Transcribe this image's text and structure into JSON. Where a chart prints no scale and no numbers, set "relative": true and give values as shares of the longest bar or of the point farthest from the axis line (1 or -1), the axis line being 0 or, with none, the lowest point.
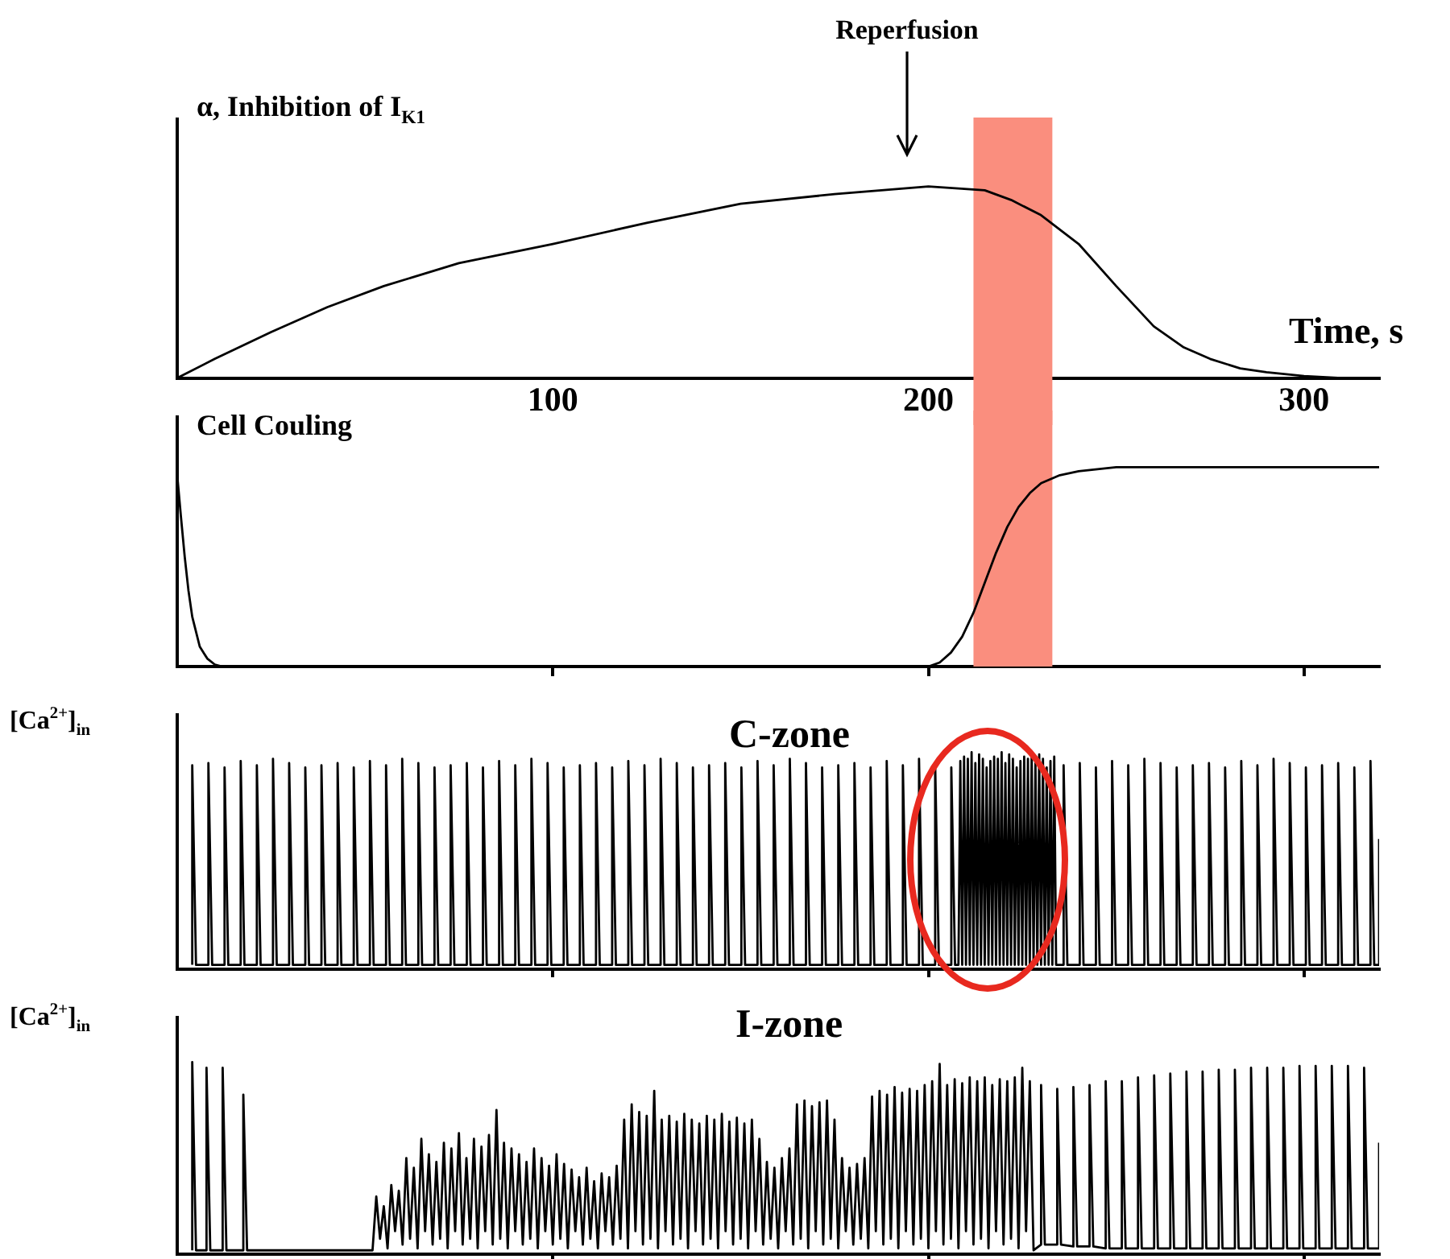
{
  "chart_data": [
    {
      "type": "line",
      "ylabel": "α, Inhibition of I$_{K1}$",
      "xlabel": "Time, s",
      "relative": true,
      "color": "#000000",
      "marker": "none",
      "xlim": [
        0,
        320
      ],
      "xticks": [
        100,
        200,
        300
      ],
      "tick_labels": "x",
      "x": [
        0,
        10,
        25,
        40,
        55,
        75,
        100,
        125,
        150,
        175,
        200,
        208,
        215,
        222,
        230,
        240,
        250,
        260,
        268,
        275,
        283,
        290,
        300,
        310,
        320
      ],
      "values": [
        0,
        0.1,
        0.24,
        0.37,
        0.48,
        0.6,
        0.7,
        0.81,
        0.91,
        0.96,
        1,
        0.99,
        0.98,
        0.93,
        0.85,
        0.7,
        0.48,
        0.27,
        0.16,
        0.1,
        0.05,
        0.03,
        0.01,
        0,
        0
      ],
      "bands": [
        {
          "axis": "x",
          "from": 212,
          "to": 233,
          "color": "#fa8e7e"
        }
      ],
      "annotations": [
        "Reperfusion"
      ]
    },
    {
      "type": "line",
      "ylabel": "Cell Couling",
      "relative": true,
      "color": "#000000",
      "marker": "none",
      "xlim": [
        0,
        320
      ],
      "xticks": [
        100,
        200,
        300
      ],
      "tick_labels": false,
      "x": [
        0,
        1,
        2,
        3,
        4,
        6,
        8,
        10,
        12,
        200,
        203,
        206,
        209,
        212,
        215,
        218,
        221,
        224,
        227,
        230,
        235,
        240,
        245,
        250,
        320
      ],
      "values": [
        0.96,
        0.75,
        0.55,
        0.38,
        0.25,
        0.1,
        0.04,
        0.01,
        0,
        0,
        0.02,
        0.07,
        0.15,
        0.27,
        0.42,
        0.57,
        0.7,
        0.8,
        0.87,
        0.92,
        0.96,
        0.98,
        0.99,
        1,
        1
      ],
      "bands": [
        {
          "axis": "x",
          "from": 212,
          "to": 233,
          "color": "#fa8e7e"
        }
      ]
    },
    {
      "type": "line",
      "title": "C-zone",
      "ylabel": "[Ca$^{2+}$]$_{in}$",
      "relative": true,
      "color": "#000000",
      "marker": "none",
      "xlim": [
        0,
        320
      ],
      "xticks": [
        100,
        200,
        300
      ],
      "tick_labels": false,
      "x": [
        4,
        4,
        5,
        8.3,
        8.3,
        9.3,
        12.6,
        12.6,
        13.6,
        16.9,
        16.9,
        17.9,
        21.2,
        21.2,
        22.2,
        25.5,
        25.5,
        26.5,
        29.8,
        29.8,
        30.8,
        34.1,
        34.1,
        35.1,
        38.4,
        38.4,
        39.4,
        42.7,
        42.7,
        43.7,
        47,
        47,
        48,
        51.3,
        51.3,
        52.3,
        55.6,
        55.6,
        56.6,
        59.9,
        59.9,
        60.9,
        64.2,
        64.2,
        65.2,
        68.5,
        68.5,
        69.5,
        72.8,
        72.8,
        73.8,
        77.1,
        77.1,
        78.1,
        81.4,
        81.4,
        82.4,
        85.7,
        85.7,
        86.7,
        90,
        90,
        91,
        94.3,
        94.3,
        95.3,
        98.6,
        98.6,
        99.6,
        102.9,
        102.9,
        103.9,
        107.2,
        107.2,
        108.2,
        111.5,
        111.5,
        112.5,
        115.8,
        115.8,
        116.8,
        120.1,
        120.1,
        121.1,
        124.4,
        124.4,
        125.4,
        128.7,
        128.7,
        129.7,
        133,
        133,
        134,
        137.3,
        137.3,
        138.3,
        141.6,
        141.6,
        142.6,
        145.9,
        145.9,
        146.9,
        150.2,
        150.2,
        151.2,
        154.5,
        154.5,
        155.5,
        158.8,
        158.8,
        159.8,
        163.1,
        163.1,
        164.1,
        167.4,
        167.4,
        168.4,
        171.7,
        171.7,
        172.7,
        176,
        176,
        177,
        180.3,
        180.3,
        181.3,
        184.6,
        184.6,
        185.6,
        188.9,
        188.9,
        189.9,
        193.2,
        193.2,
        194.2,
        197.5,
        197.5,
        198.5,
        201.8,
        201.8,
        202.8,
        206.1,
        206.1,
        207.1,
        208,
        208.5,
        209,
        209.5,
        210,
        210.5,
        211,
        211.5,
        212,
        212.5,
        213,
        213.5,
        214,
        214.5,
        215,
        215.5,
        216,
        216.5,
        217,
        217.5,
        218,
        218.5,
        219,
        219.5,
        220,
        220.5,
        221,
        221.5,
        222,
        222.5,
        223,
        223.5,
        224,
        224.5,
        225,
        225.5,
        226,
        226.5,
        227,
        227.5,
        228,
        228.5,
        229,
        229.5,
        230,
        230.5,
        231,
        231.5,
        232,
        232.5,
        233,
        233.5,
        234,
        236,
        236,
        237,
        240.3,
        240.3,
        241.3,
        244.6,
        244.6,
        245.6,
        248.9,
        248.9,
        249.9,
        253.2,
        253.2,
        254.2,
        257.5,
        257.5,
        258.5,
        261.8,
        261.8,
        262.8,
        266.1,
        266.1,
        267.1,
        270.4,
        270.4,
        271.4,
        274.7,
        274.7,
        275.7,
        279,
        279,
        280,
        283.3,
        283.3,
        284.3,
        287.6,
        287.6,
        288.6,
        291.9,
        291.9,
        292.9,
        296.2,
        296.2,
        297.2,
        300.5,
        300.5,
        301.5,
        304.8,
        304.8,
        305.8,
        309.1,
        309.1,
        310.1,
        313.4,
        313.4,
        314.4,
        317.7,
        317.7,
        318.7,
        320,
        320
      ],
      "values": [
        0.02,
        0.94,
        0.02,
        0.02,
        0.95,
        0.02,
        0.02,
        0.93,
        0.02,
        0.02,
        0.96,
        0.02,
        0.02,
        0.94,
        0.02,
        0.02,
        0.97,
        0.02,
        0.02,
        0.95,
        0.02,
        0.02,
        0.93,
        0.02,
        0.02,
        0.94,
        0.02,
        0.02,
        0.95,
        0.02,
        0.02,
        0.93,
        0.02,
        0.02,
        0.96,
        0.02,
        0.02,
        0.94,
        0.02,
        0.02,
        0.97,
        0.02,
        0.02,
        0.95,
        0.02,
        0.02,
        0.93,
        0.02,
        0.02,
        0.94,
        0.02,
        0.02,
        0.95,
        0.02,
        0.02,
        0.93,
        0.02,
        0.02,
        0.96,
        0.02,
        0.02,
        0.94,
        0.02,
        0.02,
        0.97,
        0.02,
        0.02,
        0.95,
        0.02,
        0.02,
        0.93,
        0.02,
        0.02,
        0.94,
        0.02,
        0.02,
        0.95,
        0.02,
        0.02,
        0.93,
        0.02,
        0.02,
        0.96,
        0.02,
        0.02,
        0.94,
        0.02,
        0.02,
        0.97,
        0.02,
        0.02,
        0.95,
        0.02,
        0.02,
        0.93,
        0.02,
        0.02,
        0.94,
        0.02,
        0.02,
        0.95,
        0.02,
        0.02,
        0.93,
        0.02,
        0.02,
        0.96,
        0.02,
        0.02,
        0.94,
        0.02,
        0.02,
        0.97,
        0.02,
        0.02,
        0.95,
        0.02,
        0.02,
        0.93,
        0.02,
        0.02,
        0.94,
        0.02,
        0.02,
        0.95,
        0.02,
        0.02,
        0.93,
        0.02,
        0.02,
        0.96,
        0.02,
        0.02,
        0.94,
        0.02,
        0.02,
        0.97,
        0.02,
        0.02,
        0.95,
        0.02,
        0.02,
        0.93,
        0.02,
        0.02,
        0.96,
        0.02,
        0.98,
        0.02,
        0.97,
        0.02,
        1,
        0.02,
        0.95,
        0.02,
        0.99,
        0.02,
        0.97,
        0.02,
        0.93,
        0.02,
        0.96,
        0.02,
        0.98,
        0.02,
        0.97,
        0.02,
        1,
        0.02,
        0.95,
        0.02,
        0.99,
        0.02,
        0.97,
        0.02,
        0.93,
        0.02,
        0.96,
        0.02,
        0.98,
        0.02,
        0.97,
        0.02,
        1,
        0.02,
        0.95,
        0.02,
        0.99,
        0.02,
        0.97,
        0.02,
        0.93,
        0.02,
        0.96,
        0.02,
        0.98,
        0.02,
        0.02,
        0.94,
        0.02,
        0.02,
        0.95,
        0.02,
        0.02,
        0.93,
        0.02,
        0.02,
        0.96,
        0.02,
        0.02,
        0.94,
        0.02,
        0.02,
        0.97,
        0.02,
        0.02,
        0.95,
        0.02,
        0.02,
        0.93,
        0.02,
        0.02,
        0.94,
        0.02,
        0.02,
        0.95,
        0.02,
        0.02,
        0.93,
        0.02,
        0.02,
        0.96,
        0.02,
        0.02,
        0.94,
        0.02,
        0.02,
        0.97,
        0.02,
        0.02,
        0.95,
        0.02,
        0.02,
        0.93,
        0.02,
        0.02,
        0.94,
        0.02,
        0.02,
        0.95,
        0.02,
        0.02,
        0.93,
        0.02,
        0.02,
        0.96,
        0.02,
        0.02,
        0.6
      ]
    },
    {
      "type": "line",
      "title": "I-zone",
      "ylabel": "[Ca$^{2+}$]$_{in}$",
      "relative": true,
      "color": "#000000",
      "marker": "none",
      "xlim": [
        0,
        320
      ],
      "xticks": [
        100,
        200,
        300
      ],
      "tick_labels": false,
      "x": [
        4,
        4,
        5,
        7.8,
        7.8,
        8.8,
        12.1,
        12.1,
        13.1,
        17.6,
        17.6,
        18.6,
        52,
        53,
        54,
        55,
        56,
        57,
        58,
        59,
        60,
        61,
        62,
        63,
        64,
        65,
        66,
        67,
        68,
        69,
        70,
        71,
        72,
        73,
        74,
        75,
        76,
        77,
        78,
        79,
        80,
        81,
        82,
        83,
        84,
        85,
        86,
        87,
        88,
        89,
        90,
        91,
        92,
        93,
        94,
        95,
        96,
        97,
        98,
        99,
        100,
        101,
        102,
        103,
        104,
        105,
        106,
        107,
        108,
        109,
        110,
        111,
        112,
        113,
        114,
        115,
        116,
        117,
        118,
        119,
        120,
        121,
        122,
        123,
        124,
        125,
        126,
        127,
        128,
        129,
        130,
        131,
        132,
        133,
        134,
        135,
        136,
        137,
        138,
        139,
        140,
        141,
        142,
        143,
        144,
        145,
        146,
        147,
        148,
        149,
        150,
        151,
        152,
        153,
        154,
        155,
        156,
        157,
        158,
        159,
        160,
        161,
        162,
        163,
        164,
        165,
        166,
        167,
        168,
        169,
        170,
        171,
        172,
        173,
        174,
        175,
        176,
        177,
        178,
        179,
        180,
        181,
        182,
        183,
        184,
        185,
        186,
        187,
        188,
        189,
        190,
        191,
        192,
        193,
        194,
        195,
        196,
        197,
        198,
        199,
        200,
        201,
        202,
        203,
        204,
        205,
        206,
        207,
        208,
        209,
        210,
        211,
        212,
        213,
        214,
        215,
        216,
        217,
        218,
        219,
        220,
        221,
        222,
        223,
        224,
        225,
        226,
        227,
        228,
        230,
        230,
        231,
        234.3,
        234.3,
        235.3,
        238.6,
        238.6,
        239.6,
        242.9,
        242.9,
        243.9,
        247.2,
        247.2,
        248.2,
        251.5,
        251.5,
        252.5,
        255.8,
        255.8,
        256.8,
        260.1,
        260.1,
        261.1,
        264.4,
        264.4,
        265.4,
        268.7,
        268.7,
        269.7,
        273,
        273,
        274,
        277.3,
        277.3,
        278.3,
        281.6,
        281.6,
        282.6,
        285.9,
        285.9,
        286.9,
        290.2,
        290.2,
        291.2,
        294.5,
        294.5,
        295.5,
        298.8,
        298.8,
        299.8,
        303.1,
        303.1,
        304.1,
        307.4,
        307.4,
        308.4,
        311.7,
        311.7,
        312.7,
        316,
        316,
        317,
        320,
        320
      ],
      "values": [
        0.02,
        1,
        0.02,
        0.02,
        0.97,
        0.02,
        0.02,
        0.97,
        0.02,
        0.02,
        0.83,
        0.02,
        0.02,
        0.3,
        0.08,
        0.25,
        0.03,
        0.36,
        0.12,
        0.33,
        0.05,
        0.5,
        0.08,
        0.45,
        0.03,
        0.6,
        0.12,
        0.52,
        0.05,
        0.48,
        0.08,
        0.58,
        0.03,
        0.55,
        0.12,
        0.63,
        0.05,
        0.5,
        0.08,
        0.6,
        0.03,
        0.56,
        0.12,
        0.62,
        0.05,
        0.75,
        0.08,
        0.58,
        0.03,
        0.55,
        0.12,
        0.52,
        0.05,
        0.48,
        0.08,
        0.55,
        0.03,
        0.5,
        0.12,
        0.46,
        0.05,
        0.52,
        0.08,
        0.47,
        0.03,
        0.44,
        0.12,
        0.4,
        0.05,
        0.45,
        0.08,
        0.38,
        0.03,
        0.42,
        0.12,
        0.4,
        0.05,
        0.46,
        0.08,
        0.7,
        0.03,
        0.78,
        0.12,
        0.74,
        0.05,
        0.72,
        0.08,
        0.85,
        0.03,
        0.7,
        0.12,
        0.72,
        0.05,
        0.69,
        0.08,
        0.73,
        0.03,
        0.7,
        0.12,
        0.68,
        0.05,
        0.72,
        0.08,
        0.7,
        0.03,
        0.73,
        0.12,
        0.69,
        0.05,
        0.71,
        0.08,
        0.68,
        0.03,
        0.7,
        0.12,
        0.6,
        0.05,
        0.48,
        0.08,
        0.45,
        0.03,
        0.5,
        0.12,
        0.55,
        0.05,
        0.78,
        0.08,
        0.8,
        0.03,
        0.77,
        0.12,
        0.79,
        0.05,
        0.8,
        0.08,
        0.7,
        0.03,
        0.5,
        0.12,
        0.45,
        0.05,
        0.47,
        0.08,
        0.5,
        0.03,
        0.82,
        0.12,
        0.85,
        0.05,
        0.83,
        0.08,
        0.87,
        0.03,
        0.84,
        0.12,
        0.86,
        0.05,
        0.85,
        0.08,
        0.88,
        0.03,
        0.9,
        0.12,
        0.99,
        0.05,
        0.88,
        0.08,
        0.91,
        0.03,
        0.89,
        0.12,
        0.92,
        0.05,
        0.9,
        0.08,
        0.92,
        0.03,
        0.88,
        0.12,
        0.91,
        0.05,
        0.9,
        0.08,
        0.92,
        0.03,
        0.97,
        0.12,
        0.9,
        0.02,
        0.05,
        0.88,
        0.05,
        0.05,
        0.86,
        0.05,
        0.04,
        0.87,
        0.04,
        0.04,
        0.88,
        0.04,
        0.03,
        0.9,
        0.03,
        0.03,
        0.9,
        0.03,
        0.03,
        0.92,
        0.03,
        0.03,
        0.93,
        0.03,
        0.03,
        0.94,
        0.03,
        0.03,
        0.95,
        0.03,
        0.03,
        0.95,
        0.03,
        0.03,
        0.96,
        0.03,
        0.03,
        0.96,
        0.03,
        0.03,
        0.97,
        0.03,
        0.03,
        0.97,
        0.03,
        0.03,
        0.97,
        0.03,
        0.03,
        0.98,
        0.03,
        0.03,
        0.98,
        0.03,
        0.03,
        0.98,
        0.03,
        0.03,
        0.98,
        0.03,
        0.03,
        0.97,
        0.03,
        0.03,
        0.58
      ]
    }
  ]
}
